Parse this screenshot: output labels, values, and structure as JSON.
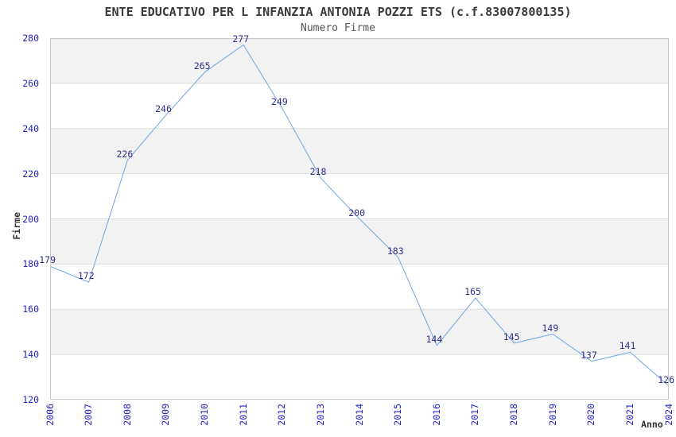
{
  "chart_data": {
    "type": "line",
    "title": "ENTE EDUCATIVO PER L INFANZIA ANTONIA POZZI ETS (c.f.83007800135)",
    "subtitle": "Numero Firme",
    "xlabel": "Anno",
    "ylabel": "Firme",
    "x": [
      "2006",
      "2007",
      "2008",
      "2009",
      "2010",
      "2011",
      "2012",
      "2013",
      "2014",
      "2015",
      "2016",
      "2017",
      "2018",
      "2019",
      "2020",
      "2021",
      "2024"
    ],
    "values": [
      179,
      172,
      226,
      246,
      265,
      277,
      249,
      218,
      200,
      183,
      144,
      165,
      145,
      149,
      137,
      141,
      126
    ],
    "ylim": [
      120,
      280
    ],
    "ytick_step": 20,
    "yticks": [
      120,
      140,
      160,
      180,
      200,
      220,
      240,
      260,
      280
    ],
    "grid": true,
    "legend_position": "none",
    "colors": {
      "line": "#6ea6e6",
      "tick_label": "#2222cc",
      "point_label": "#2e2e88",
      "band": "#f2f2f2",
      "gridline": "#dcdcdc",
      "plot_border": "#c9c9c9",
      "title": "#3a3a3a",
      "subtitle": "#555555",
      "axis_title": "#333333"
    }
  }
}
